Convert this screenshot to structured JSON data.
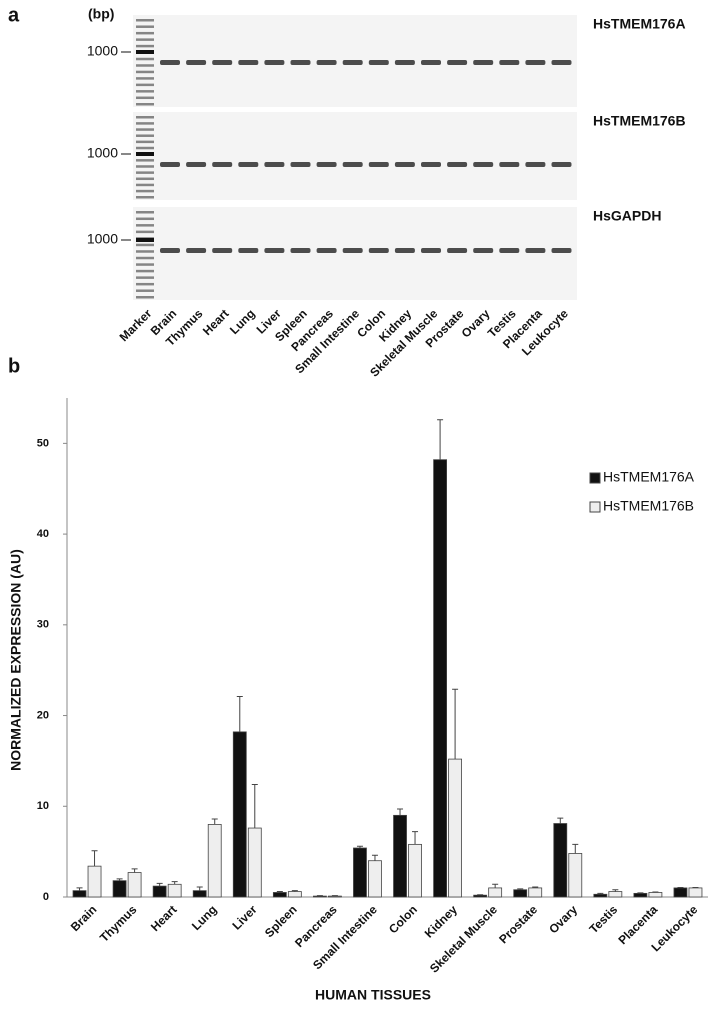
{
  "gel": {
    "panel_label": "a",
    "unit_label": "(bp)",
    "rows": [
      {
        "name": "HsTMEM176A",
        "size_label": "1000"
      },
      {
        "name": "HsTMEM176B",
        "size_label": "1000"
      },
      {
        "name": "HsGAPDH",
        "size_label": "1000"
      }
    ],
    "lanes": [
      "Marker",
      "Brain",
      "Thymus",
      "Heart",
      "Lung",
      "Liver",
      "Spleen",
      "Pancreas",
      "Small Intestine",
      "Colon",
      "Kidney",
      "Skeletal Muscle",
      "Prostate",
      "Ovary",
      "Testis",
      "Placenta",
      "Leukocyte"
    ]
  },
  "chart_data": {
    "type": "bar",
    "panel_label": "b",
    "xlabel": "HUMAN TISSUES",
    "ylabel": "NORMALIZED EXPRESSION (AU)",
    "categories": [
      "Brain",
      "Thymus",
      "Heart",
      "Lung",
      "Liver",
      "Spleen",
      "Pancreas",
      "Small Intestine",
      "Colon",
      "Kidney",
      "Skeletal Muscle",
      "Prostate",
      "Ovary",
      "Testis",
      "Placenta",
      "Leukocyte"
    ],
    "series": [
      {
        "name": "HsTMEM176A",
        "color": "#111111",
        "values": [
          0.7,
          1.8,
          1.2,
          0.7,
          18.2,
          0.5,
          0.1,
          5.4,
          9.0,
          48.2,
          0.2,
          0.8,
          8.1,
          0.3,
          0.4,
          1.0
        ],
        "errors": [
          0.3,
          0.2,
          0.3,
          0.4,
          3.9,
          0.1,
          0.05,
          0.2,
          0.7,
          4.4,
          0.05,
          0.1,
          0.6,
          0.1,
          0.05,
          0.05
        ]
      },
      {
        "name": "HsTMEM176B",
        "color": "#eeeeee",
        "values": [
          3.4,
          2.7,
          1.4,
          8.0,
          7.6,
          0.6,
          0.1,
          4.0,
          5.8,
          15.2,
          1.0,
          1.0,
          4.8,
          0.6,
          0.5,
          1.0
        ],
        "errors": [
          1.7,
          0.4,
          0.3,
          0.6,
          4.8,
          0.1,
          0.05,
          0.6,
          1.4,
          7.7,
          0.4,
          0.1,
          1.0,
          0.2,
          0.05,
          0.05
        ]
      }
    ],
    "ylim": [
      0,
      55
    ],
    "yticks": [
      0,
      10,
      20,
      30,
      40,
      50
    ],
    "legend": "upper right",
    "grid": false
  }
}
